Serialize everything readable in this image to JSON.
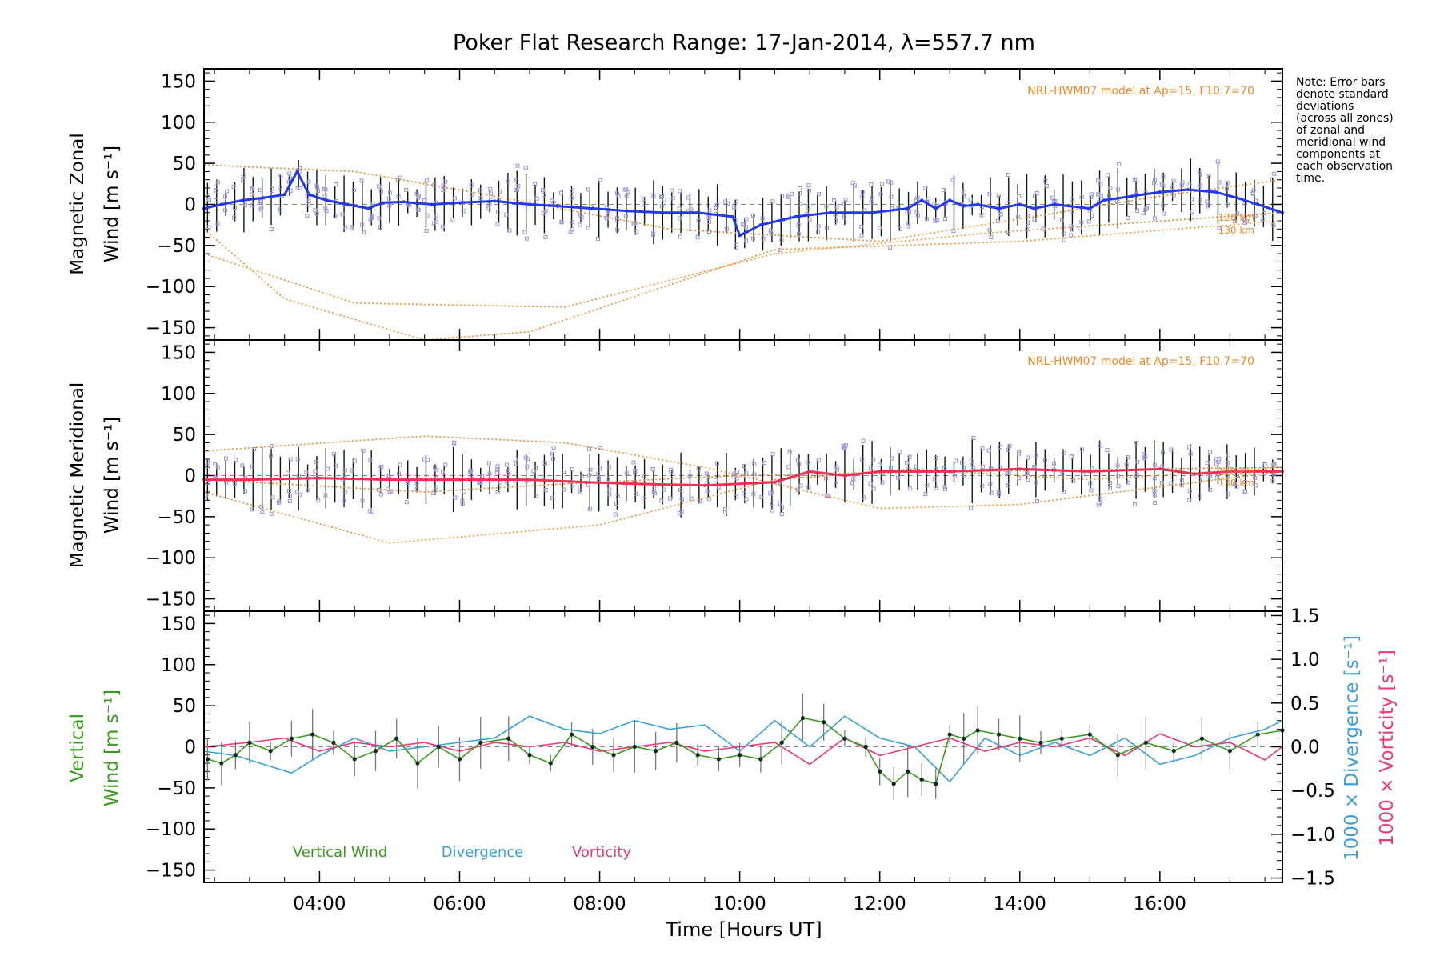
{
  "title": "Poker Flat Research Range: 17-Jan-2014, λ=557.7 nm",
  "note_lines": [
    "Note: Error bars",
    "denote standard",
    "deviations",
    "(across all zones)",
    "of zonal and",
    "meridional wind",
    "components at",
    "each observation",
    "time."
  ],
  "xaxis": {
    "label": "Time [Hours UT]",
    "ticks": [
      "04:00",
      "06:00",
      "08:00",
      "10:00",
      "12:00",
      "14:00",
      "16:00"
    ],
    "tick_values": [
      4,
      6,
      8,
      10,
      12,
      14,
      16
    ],
    "range": [
      2.35,
      17.75
    ]
  },
  "panels": [
    {
      "id": "zonal",
      "ylabel_line1": "Magnetic Zonal",
      "ylabel_line2": "Wind [m s⁻¹]",
      "ylim": [
        -165,
        165
      ],
      "yticks": [
        "150",
        "100",
        "50",
        "0",
        "−50",
        "−100",
        "−150"
      ],
      "ytick_values": [
        150,
        100,
        50,
        0,
        -50,
        -100,
        -150
      ],
      "model_note": "NRL-HWM07 model at Ap=15, F10.7=70",
      "model_labels": [
        "120 km",
        "130 km"
      ]
    },
    {
      "id": "meridional",
      "ylabel_line1": "Magnetic Meridional",
      "ylabel_line2": "Wind [m s⁻¹]",
      "ylim": [
        -165,
        165
      ],
      "yticks": [
        "150",
        "100",
        "50",
        "0",
        "−50",
        "−100",
        "−150"
      ],
      "ytick_values": [
        150,
        100,
        50,
        0,
        -50,
        -100,
        -150
      ],
      "model_note": "NRL-HWM07 model at Ap=15, F10.7=70",
      "model_labels": [
        "120 km",
        "130 km"
      ]
    },
    {
      "id": "vertical",
      "ylabel_line1": "Vertical",
      "ylabel_line2": "Wind [m s⁻¹]",
      "ylim": [
        -165,
        165
      ],
      "yticks": [
        "150",
        "100",
        "50",
        "0",
        "−50",
        "−100",
        "−150"
      ],
      "ytick_values": [
        150,
        100,
        50,
        0,
        -50,
        -100,
        -150
      ],
      "right_axis1_label": "1000 × Divergence [s⁻¹]",
      "right_axis2_label": "1000 × Vorticity [s⁻¹]",
      "right_ylim": [
        -1.55,
        1.55
      ],
      "right_yticks": [
        "1.5",
        "1.0",
        "0.5",
        "0.0",
        "−0.5",
        "−1.0",
        "−1.5"
      ],
      "right_ytick_values": [
        1.5,
        1.0,
        0.5,
        0.0,
        -0.5,
        -1.0,
        -1.5
      ],
      "legend": [
        "Vertical Wind",
        "Divergence",
        "Vorticity"
      ]
    }
  ],
  "colors": {
    "zonal": "#2338e8",
    "meridional": "#ef2f55",
    "vertical": "#3c9a1f",
    "divergence": "#3d9fd4",
    "vorticity": "#e8397a",
    "model": "#f08a2a",
    "scatter": "#9b94d6",
    "errorbar": "#0a1a0a"
  },
  "chart_data": [
    {
      "type": "line",
      "panel": "zonal",
      "x_units": "hours UT",
      "series": [
        {
          "values_x": [
            2.35,
            2.6,
            2.9,
            3.2,
            3.5,
            3.68,
            3.85,
            4.1,
            4.4,
            4.7,
            4.9,
            5.2,
            5.6,
            6.0,
            6.5,
            7.0,
            7.4,
            7.9,
            8.4,
            8.9,
            9.4,
            9.9,
            10.0,
            10.3,
            10.8,
            11.3,
            11.9,
            12.4,
            12.6,
            12.8,
            13.0,
            13.2,
            13.4,
            13.7,
            14.0,
            14.2,
            14.5,
            15.0,
            15.2,
            15.6,
            16.0,
            16.4,
            16.8,
            17.1,
            17.4,
            17.75
          ],
          "values_y": [
            -5,
            0,
            5,
            8,
            12,
            40,
            12,
            5,
            0,
            -5,
            2,
            3,
            0,
            2,
            4,
            0,
            -2,
            -5,
            -8,
            -10,
            -10,
            -15,
            -38,
            -25,
            -15,
            -10,
            -10,
            -5,
            5,
            -5,
            5,
            -2,
            0,
            -5,
            0,
            -5,
            0,
            -5,
            5,
            10,
            15,
            18,
            15,
            8,
            0,
            -10
          ]
        },
        {
          "values_x": [
            2.35,
            4.5,
            7.5,
            10.5,
            13.5,
            17.75
          ],
          "values_y": [
            -60,
            -120,
            -125,
            -60,
            -35,
            -10
          ]
        },
        {
          "values_x": [
            2.35,
            3.5,
            5.5,
            7.0,
            10.5,
            14.0,
            17.75
          ],
          "values_y": [
            -30,
            -115,
            -165,
            -155,
            -55,
            -45,
            -20
          ]
        },
        {
          "values_x": [
            2.35,
            4.5,
            6.5,
            9.0,
            12.0,
            16.0,
            17.75
          ],
          "values_y": [
            48,
            40,
            10,
            -30,
            -45,
            10,
            30
          ]
        }
      ]
    },
    {
      "type": "line",
      "panel": "meridional",
      "x_units": "hours UT",
      "series": [
        {
          "values_x": [
            2.35,
            3.0,
            4.0,
            5.0,
            6.0,
            7.0,
            7.8,
            8.5,
            9.5,
            10.5,
            11.0,
            11.5,
            12.0,
            13.0,
            14.0,
            15.0,
            16.0,
            16.5,
            17.0,
            17.75
          ],
          "values_y": [
            -5,
            -5,
            -3,
            -5,
            -5,
            -5,
            -8,
            -10,
            -12,
            -8,
            5,
            0,
            5,
            5,
            8,
            5,
            8,
            2,
            5,
            5
          ]
        },
        {
          "values_x": [
            2.35,
            5.5,
            7.5,
            10.0,
            13.0,
            17.75
          ],
          "values_y": [
            -5,
            -20,
            -10,
            0,
            5,
            10
          ]
        },
        {
          "values_x": [
            2.35,
            5.0,
            8.0,
            10.5,
            12.5,
            15.0,
            17.75
          ],
          "values_y": [
            -20,
            -82,
            -60,
            -5,
            8,
            -5,
            10
          ]
        },
        {
          "values_x": [
            2.35,
            5.5,
            7.5,
            9.5,
            12.0,
            14.0,
            17.75
          ],
          "values_y": [
            30,
            48,
            40,
            10,
            -40,
            -35,
            5
          ]
        }
      ]
    },
    {
      "type": "line",
      "panel": "vertical",
      "x_units": "hours UT",
      "series": [
        {
          "name": "Vertical Wind",
          "values_x": [
            2.4,
            2.6,
            2.8,
            3.0,
            3.3,
            3.6,
            3.9,
            4.2,
            4.5,
            4.8,
            5.1,
            5.4,
            5.7,
            6.0,
            6.3,
            6.7,
            7.0,
            7.3,
            7.6,
            7.9,
            8.2,
            8.5,
            8.8,
            9.1,
            9.4,
            9.7,
            10.0,
            10.3,
            10.6,
            10.9,
            11.2,
            11.5,
            11.8,
            12.0,
            12.2,
            12.4,
            12.6,
            12.8,
            13.0,
            13.2,
            13.4,
            13.7,
            14.0,
            14.3,
            14.6,
            15.0,
            15.4,
            15.8,
            16.2,
            16.6,
            17.0,
            17.4,
            17.75
          ],
          "values_y": [
            -15,
            -20,
            -10,
            5,
            -5,
            10,
            15,
            5,
            -15,
            -5,
            10,
            -20,
            0,
            -15,
            5,
            10,
            -10,
            -20,
            15,
            0,
            -10,
            0,
            -5,
            5,
            -10,
            -15,
            -10,
            -15,
            5,
            35,
            30,
            10,
            0,
            -30,
            -45,
            -30,
            -40,
            -45,
            15,
            10,
            20,
            15,
            10,
            5,
            10,
            15,
            -10,
            5,
            -5,
            10,
            -5,
            15,
            20
          ]
        },
        {
          "name": "Divergence",
          "values_x": [
            2.35,
            2.8,
            3.2,
            3.6,
            4.0,
            4.5,
            5.0,
            5.5,
            6.0,
            6.5,
            7.0,
            7.5,
            8.0,
            8.5,
            9.0,
            9.5,
            10.0,
            10.5,
            11.0,
            11.5,
            12.0,
            12.5,
            13.0,
            13.5,
            14.0,
            14.5,
            15.0,
            15.5,
            16.0,
            16.5,
            17.0,
            17.5,
            17.75
          ],
          "values_y": [
            -0.05,
            -0.1,
            -0.2,
            -0.3,
            -0.1,
            0.1,
            -0.05,
            0.0,
            0.05,
            0.1,
            0.35,
            0.2,
            0.15,
            0.3,
            0.2,
            0.25,
            -0.05,
            0.3,
            0.0,
            0.35,
            0.1,
            0.0,
            -0.4,
            0.1,
            -0.1,
            0.05,
            -0.1,
            0.1,
            -0.2,
            -0.1,
            0.1,
            0.2,
            0.3
          ]
        },
        {
          "name": "Vorticity",
          "values_x": [
            2.35,
            3.0,
            3.5,
            4.0,
            4.5,
            5.0,
            5.5,
            6.0,
            6.5,
            7.0,
            7.5,
            8.0,
            8.5,
            9.0,
            9.5,
            10.0,
            10.5,
            11.0,
            11.5,
            12.0,
            12.5,
            13.0,
            13.5,
            14.0,
            14.5,
            15.0,
            15.5,
            16.0,
            16.5,
            17.0,
            17.5,
            17.75
          ],
          "values_y": [
            0.0,
            0.05,
            0.1,
            -0.05,
            0.05,
            0.0,
            0.05,
            -0.05,
            0.05,
            0.0,
            0.05,
            -0.05,
            0.0,
            0.05,
            -0.05,
            0.0,
            0.05,
            -0.2,
            0.1,
            -0.1,
            0.0,
            0.1,
            -0.05,
            0.05,
            0.0,
            0.1,
            -0.1,
            0.15,
            0.0,
            0.05,
            -0.15,
            0.0
          ]
        }
      ]
    }
  ]
}
